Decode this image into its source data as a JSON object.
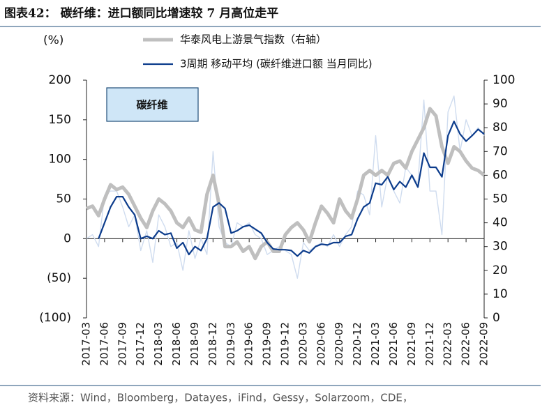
{
  "chart_data": {
    "type": "line",
    "title": "图表42： 碳纤维：进口额同比增速较 7 月高位走平",
    "y_axis_label": "(%)",
    "annotation": "碳纤维",
    "source": "资料来源：Wind，Bloomberg，Datayes，iFind，Gessy，Solarzoom，CDE，",
    "categories": [
      "2017-03",
      null,
      null,
      "2017-06",
      null,
      null,
      "2017-09",
      null,
      null,
      "2017-12",
      null,
      null,
      "2018-03",
      null,
      null,
      "2018-06",
      null,
      null,
      "2018-09",
      null,
      null,
      "2018-12",
      null,
      null,
      "2019-03",
      null,
      null,
      "2019-06",
      null,
      null,
      "2019-09",
      null,
      null,
      "2019-12",
      null,
      null,
      "2020-03",
      null,
      null,
      "2020-06",
      null,
      null,
      "2020-09",
      null,
      null,
      "2020-12",
      null,
      null,
      "2021-03",
      null,
      null,
      "2021-06",
      null,
      null,
      "2021-09",
      null,
      null,
      "2021-12",
      null,
      null,
      "2022-03",
      null,
      null,
      "2022-06",
      null,
      null,
      "2022-09"
    ],
    "ylim": [
      -100,
      200
    ],
    "yticks": [
      {
        "value": -100,
        "label": "(100)"
      },
      {
        "value": -50,
        "label": "(50)"
      },
      0,
      50,
      100,
      150,
      200
    ],
    "y2lim": [
      0,
      100
    ],
    "y2ticks": [
      0,
      10,
      20,
      30,
      40,
      50,
      60,
      70,
      80,
      90,
      100
    ],
    "series": [
      {
        "color": "#cfdcef",
        "values": [
          0,
          5,
          -10,
          55,
          60,
          60,
          40,
          15,
          30,
          -15,
          10,
          -30,
          30,
          15,
          -10,
          -5,
          -40,
          10,
          -25,
          0,
          -20,
          110,
          15,
          -5,
          -10,
          20,
          15,
          20,
          5,
          0,
          -20,
          -15,
          -10,
          -15,
          -20,
          -50,
          -5,
          -15,
          -10,
          -5,
          -10,
          5,
          -10,
          5,
          15,
          60,
          55,
          30,
          130,
          40,
          80,
          60,
          45,
          90,
          80,
          70,
          175,
          60,
          60,
          5,
          160,
          180,
          110,
          150,
          130,
          140,
          130
        ]
      },
      {
        "name": "华泰风电上游景气指数（右轴）",
        "color": "#bfbfbf",
        "axis": "y2",
        "values": [
          46,
          47,
          43,
          50,
          56,
          54,
          55,
          52,
          47,
          42,
          38,
          45,
          50,
          48,
          45,
          40,
          38,
          42,
          37,
          36,
          52,
          60,
          48,
          30,
          30,
          32,
          28,
          30,
          25,
          30,
          32,
          28,
          28,
          35,
          38,
          40,
          37,
          32,
          40,
          47,
          44,
          40,
          50,
          45,
          42,
          50,
          60,
          62,
          60,
          62,
          60,
          65,
          66,
          63,
          70,
          75,
          80,
          88,
          85,
          72,
          65,
          72,
          70,
          66,
          63,
          62,
          60
        ]
      },
      {
        "name": "3周期 移动平均 (碳纤维进口额 当月同比)",
        "color": "#0c3c8c",
        "values": [
          null,
          null,
          0,
          20,
          40,
          53,
          53,
          40,
          30,
          0,
          3,
          0,
          10,
          5,
          7,
          -12,
          -5,
          -20,
          -10,
          -15,
          0,
          40,
          45,
          38,
          7,
          10,
          15,
          17,
          12,
          7,
          -5,
          -13,
          -14,
          -14,
          -15,
          -22,
          -15,
          -18,
          -10,
          -7,
          -8,
          -5,
          -5,
          3,
          5,
          25,
          40,
          45,
          70,
          68,
          78,
          62,
          72,
          65,
          80,
          65,
          108,
          90,
          90,
          78,
          130,
          148,
          132,
          123,
          130,
          138,
          132
        ]
      }
    ]
  }
}
